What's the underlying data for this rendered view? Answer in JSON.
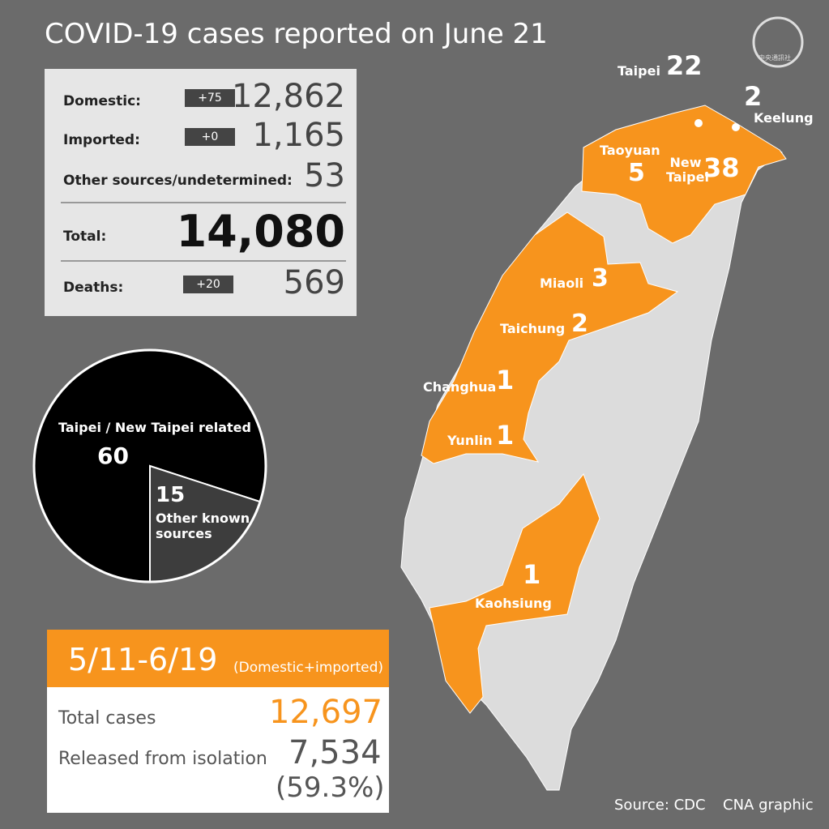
{
  "title": "COVID-19 cases reported on June 21",
  "logo": "中央通訊社",
  "summary": {
    "rows": [
      {
        "label": "Domestic:",
        "change": "+75",
        "value": "12,862"
      },
      {
        "label": "Imported:",
        "change": "+0",
        "value": "1,165"
      },
      {
        "label": "Other sources/undetermined:",
        "value": "53"
      },
      {
        "label": "Total:",
        "value": "14,080"
      },
      {
        "label": "Deaths:",
        "change": "+20",
        "value": "569"
      }
    ]
  },
  "pie": {
    "slices": [
      {
        "label": "Taipei / New Taipei related",
        "value": 60
      },
      {
        "label": "Other known sources",
        "value": 15
      }
    ]
  },
  "map": {
    "regions": [
      {
        "name": "Taipei",
        "cases": "22"
      },
      {
        "name": "Keelung",
        "cases": "2"
      },
      {
        "name": "Taoyuan",
        "cases": "5"
      },
      {
        "name": "New Taipei",
        "cases": "38"
      },
      {
        "name": "Miaoli",
        "cases": "3"
      },
      {
        "name": "Taichung",
        "cases": "2"
      },
      {
        "name": "Changhua",
        "cases": "1"
      },
      {
        "name": "Yunlin",
        "cases": "1"
      },
      {
        "name": "Kaohsiung",
        "cases": "1"
      }
    ]
  },
  "period": {
    "range": "5/11-6/19",
    "note": "(Domestic+imported)",
    "rows": [
      {
        "label": "Total cases",
        "value": "12,697"
      },
      {
        "label": "Released from isolation",
        "value": "7,534",
        "percent": "(59.3%)"
      }
    ]
  },
  "source": "Source: CDC",
  "credit": "CNA graphic"
}
